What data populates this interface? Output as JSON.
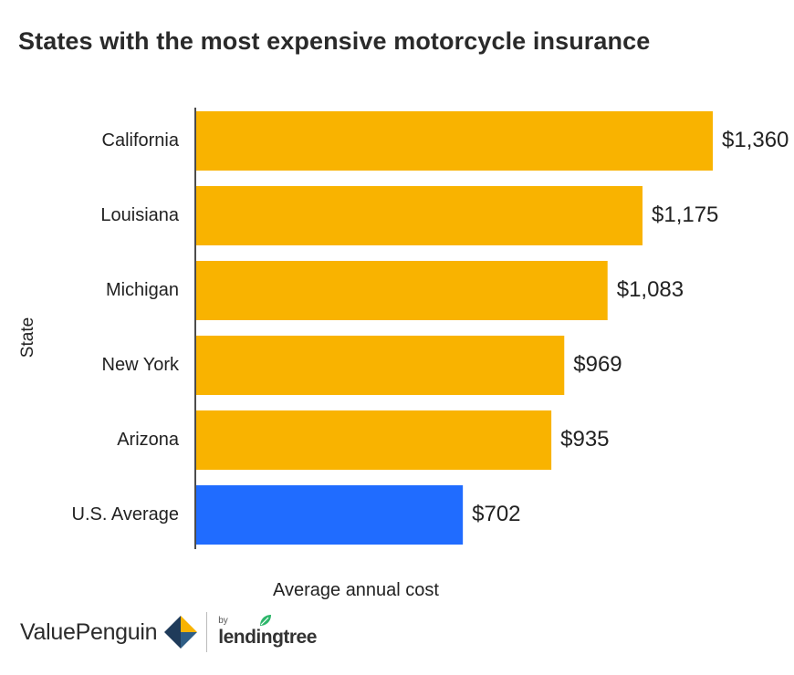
{
  "chart_data": {
    "type": "bar",
    "orientation": "horizontal",
    "title": "States with the most expensive motorcycle insurance",
    "xlabel": "Average annual cost",
    "ylabel": "State",
    "categories": [
      "California",
      "Louisiana",
      "Michigan",
      "New York",
      "Arizona",
      "U.S. Average"
    ],
    "values": [
      1360,
      1175,
      1083,
      969,
      935,
      702
    ],
    "value_labels": [
      "$1,360",
      "$1,175",
      "$1,083",
      "$969",
      "$935",
      "$702"
    ],
    "colors": [
      "#F9B300",
      "#F9B300",
      "#F9B300",
      "#F9B300",
      "#F9B300",
      "#206CFF"
    ],
    "xlim": [
      0,
      1360
    ],
    "grid": false,
    "legend": "none"
  },
  "footer": {
    "brand": "ValuePenguin",
    "by": "by",
    "partner": "lendingtree"
  }
}
